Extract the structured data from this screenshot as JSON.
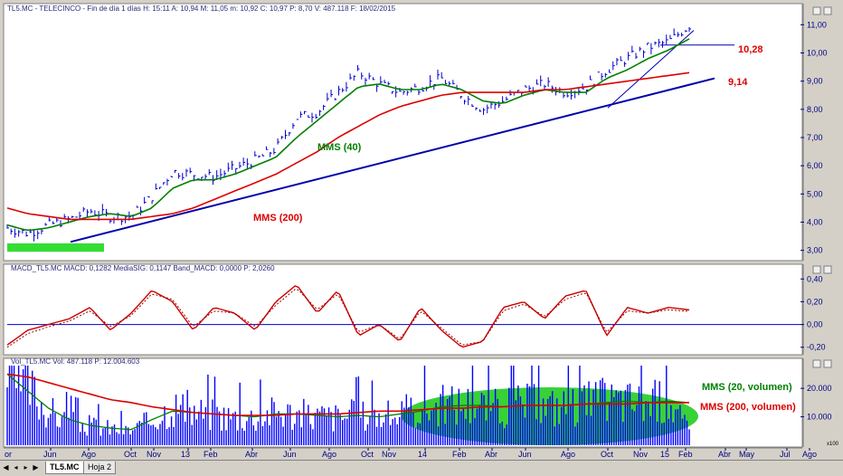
{
  "panes": {
    "price": {
      "title": "TL5.MC - TELECINCO - Fin de día 1 días  H: 15:11  A: 10,94  M: 11,05  m: 10,92  C: 10,97  P: 8,70  V: 487.118  F: 18/02/2015",
      "yticks": [
        "11,00",
        "10,00",
        "9,00",
        "8,00",
        "7,00",
        "6,00",
        "5,00",
        "4,00",
        "3,00"
      ],
      "annotations": {
        "mms40": "MMS (40)",
        "mms200": "MMS (200)",
        "level_high": "10,28",
        "level_low": "9,14"
      }
    },
    "macd": {
      "title": "MACD_TL5.MC  MACD: 0,1282  MediaSIG: 0,1147  Band_MACD: 0,0000  P: 2,0260",
      "yticks": [
        "0,40",
        "0,20",
        "0,00",
        "-0,20"
      ]
    },
    "volume": {
      "title": "Vol_TL5.MC  Vol: 487.118  P: 12.004.603",
      "yticks": [
        "20.000",
        "10.000"
      ],
      "scale_label": "x100",
      "annotations": {
        "mms20": "MMS (20, volumen)",
        "mms200": "MMS (200, volumen)"
      }
    }
  },
  "x_axis": {
    "labels": [
      "Jun",
      "Ago",
      "Oct",
      "Nov",
      "13",
      "Feb",
      "Abr",
      "Jun",
      "Ago",
      "Oct",
      "Nov",
      "14",
      "Feb",
      "Abr",
      "Jun",
      "Ago",
      "Oct",
      "Nov",
      "15",
      "Feb",
      "Abr",
      "May",
      "Jul",
      "Ago"
    ],
    "first_partial": "or"
  },
  "tabs": {
    "active": "TL5.MC",
    "other": "Hoja 2"
  },
  "nav": {
    "first": "◀",
    "prev": "◂",
    "next": "▸",
    "last": "▶"
  },
  "colors": {
    "price": "#0000cc",
    "mms40": "#008000",
    "mms200": "#dd0000",
    "trend": "#0000aa",
    "macd": "#cc0000",
    "signal": "#990000",
    "zero": "#0000cc",
    "volume": "#0000ff",
    "vol_mms20": "#008000",
    "vol_mms200": "#dd0000",
    "ellipse": "#22cc22",
    "support_zone": "#33dd33",
    "grid_bg": "#ffffff",
    "axis_text": "#000080"
  },
  "chart_data": [
    {
      "type": "line",
      "name": "price",
      "x": [
        "2012-05",
        "2012-06",
        "2012-07",
        "2012-08",
        "2012-09",
        "2012-10",
        "2012-11",
        "2012-12",
        "2013-01",
        "2013-02",
        "2013-03",
        "2013-04",
        "2013-05",
        "2013-06",
        "2013-07",
        "2013-08",
        "2013-09",
        "2013-10",
        "2013-11",
        "2013-12",
        "2014-01",
        "2014-02",
        "2014-03",
        "2014-04",
        "2014-05",
        "2014-06",
        "2014-07",
        "2014-08",
        "2014-09",
        "2014-10",
        "2014-11",
        "2014-12",
        "2015-01",
        "2015-02"
      ],
      "series": [
        {
          "name": "TL5.MC",
          "values": [
            3.8,
            3.6,
            3.9,
            4.1,
            4.4,
            4.2,
            4.2,
            4.9,
            5.8,
            5.7,
            5.6,
            5.9,
            6.2,
            6.6,
            7.7,
            7.9,
            8.6,
            9.3,
            8.9,
            8.6,
            8.8,
            9.1,
            8.5,
            8.0,
            8.3,
            8.7,
            8.9,
            8.6,
            8.8,
            9.4,
            9.8,
            10.2,
            10.4,
            10.97
          ]
        },
        {
          "name": "MMS (40)",
          "values": [
            3.9,
            3.7,
            3.8,
            4.0,
            4.2,
            4.3,
            4.2,
            4.5,
            5.2,
            5.5,
            5.5,
            5.7,
            6.0,
            6.3,
            7.0,
            7.6,
            8.2,
            8.8,
            8.9,
            8.7,
            8.7,
            8.9,
            8.7,
            8.3,
            8.2,
            8.5,
            8.7,
            8.6,
            8.6,
            9.1,
            9.4,
            9.8,
            10.1,
            10.5
          ]
        },
        {
          "name": "MMS (200)",
          "values": [
            4.5,
            4.3,
            4.2,
            4.1,
            4.1,
            4.1,
            4.1,
            4.2,
            4.3,
            4.5,
            4.8,
            5.1,
            5.4,
            5.7,
            6.1,
            6.5,
            7.0,
            7.4,
            7.8,
            8.1,
            8.3,
            8.5,
            8.6,
            8.6,
            8.6,
            8.6,
            8.7,
            8.7,
            8.8,
            8.9,
            9.0,
            9.1,
            9.2,
            9.3
          ]
        }
      ],
      "ylim": [
        2.7,
        11.3
      ],
      "levels": [
        10.28,
        9.14
      ]
    },
    {
      "type": "line",
      "name": "macd",
      "series": [
        {
          "name": "MACD",
          "values": [
            -0.18,
            -0.05,
            0.0,
            0.05,
            0.15,
            -0.05,
            0.1,
            0.3,
            0.2,
            -0.05,
            0.15,
            0.1,
            -0.05,
            0.2,
            0.35,
            0.1,
            0.3,
            -0.1,
            0.0,
            -0.15,
            0.15,
            -0.05,
            -0.2,
            -0.15,
            0.15,
            0.2,
            0.05,
            0.25,
            0.3,
            -0.1,
            0.15,
            0.1,
            0.15,
            0.1282
          ]
        },
        {
          "name": "MediaSIG",
          "values": [
            -0.2,
            -0.08,
            -0.02,
            0.03,
            0.12,
            -0.02,
            0.08,
            0.27,
            0.22,
            -0.02,
            0.12,
            0.1,
            -0.02,
            0.17,
            0.32,
            0.13,
            0.27,
            -0.07,
            0.0,
            -0.13,
            0.12,
            -0.03,
            -0.18,
            -0.15,
            0.12,
            0.18,
            0.07,
            0.22,
            0.28,
            -0.07,
            0.12,
            0.1,
            0.13,
            0.1147
          ]
        }
      ],
      "ylim": [
        -0.25,
        0.45
      ]
    },
    {
      "type": "bar",
      "name": "volume",
      "series": [
        {
          "name": "Vol",
          "values": [
            25000,
            21000,
            12000,
            8000,
            7000,
            6000,
            5000,
            9000,
            14000,
            12000,
            11000,
            10000,
            10000,
            12000,
            11000,
            10500,
            10000,
            11000,
            10000,
            11000,
            13000,
            14000,
            15000,
            14000,
            13000,
            15000,
            13500,
            14000,
            15000,
            16000,
            15500,
            15000,
            16000,
            4871
          ]
        },
        {
          "name": "MMS (20, volumen)",
          "values": [
            25000,
            19000,
            13000,
            9000,
            7000,
            6000,
            5500,
            9000,
            12000,
            11500,
            11000,
            10500,
            10000,
            11000,
            11000,
            10500,
            10000,
            10500,
            10000,
            11000,
            12000,
            13500,
            14000,
            14000,
            13500,
            14000,
            14000,
            14000,
            14500,
            15000,
            15500,
            15000,
            15500,
            15000
          ]
        },
        {
          "name": "MMS (200, volumen)",
          "values": [
            25000,
            24000,
            22000,
            20000,
            18000,
            16000,
            15000,
            13500,
            12500,
            11500,
            11000,
            10500,
            10500,
            10500,
            11000,
            11000,
            11000,
            11500,
            12000,
            12000,
            12500,
            13000,
            13000,
            13500,
            13500,
            14000,
            14000,
            14000,
            14500,
            14500,
            14500,
            15000,
            15000,
            15000
          ]
        }
      ],
      "ylim": [
        0,
        28000
      ]
    }
  ]
}
